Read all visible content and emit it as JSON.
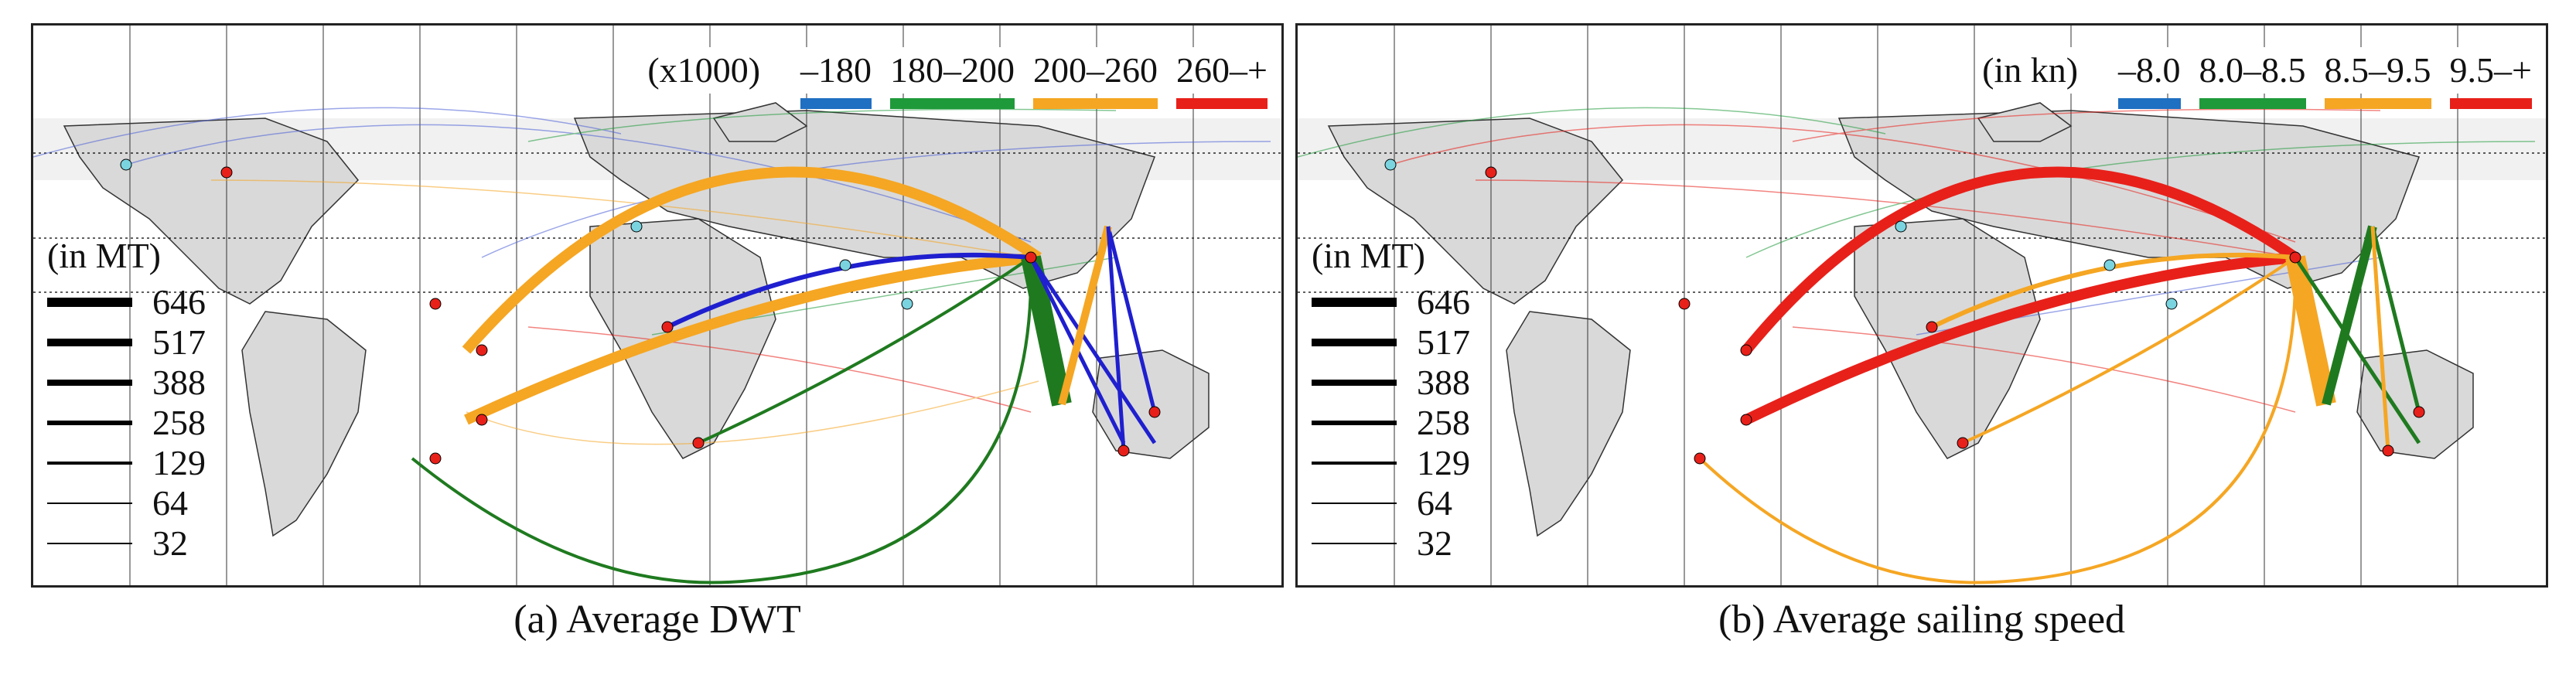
{
  "panels": [
    {
      "id": "a",
      "caption": "(a) Average DWT",
      "color_legend": {
        "unit": "(x1000)",
        "items": [
          {
            "label": "–180",
            "color": "#1f6fc2"
          },
          {
            "label": "180–200",
            "color": "#1f9a3a"
          },
          {
            "label": "200–260",
            "color": "#f5a623"
          },
          {
            "label": "260–+",
            "color": "#e8201a"
          }
        ]
      },
      "thickness_legend": {
        "title": "(in MT)",
        "values": [
          "646",
          "517",
          "388",
          "258",
          "129",
          "64",
          "32"
        ]
      }
    },
    {
      "id": "b",
      "caption": "(b) Average sailing speed",
      "color_legend": {
        "unit": "(in kn)",
        "items": [
          {
            "label": "–8.0",
            "color": "#1f6fc2"
          },
          {
            "label": "8.0–8.5",
            "color": "#1f9a3a"
          },
          {
            "label": "8.5–9.5",
            "color": "#f5a623"
          },
          {
            "label": "9.5–+",
            "color": "#e8201a"
          }
        ]
      },
      "thickness_legend": {
        "title": "(in MT)",
        "values": [
          "646",
          "517",
          "388",
          "258",
          "129",
          "64",
          "32"
        ]
      }
    }
  ]
}
